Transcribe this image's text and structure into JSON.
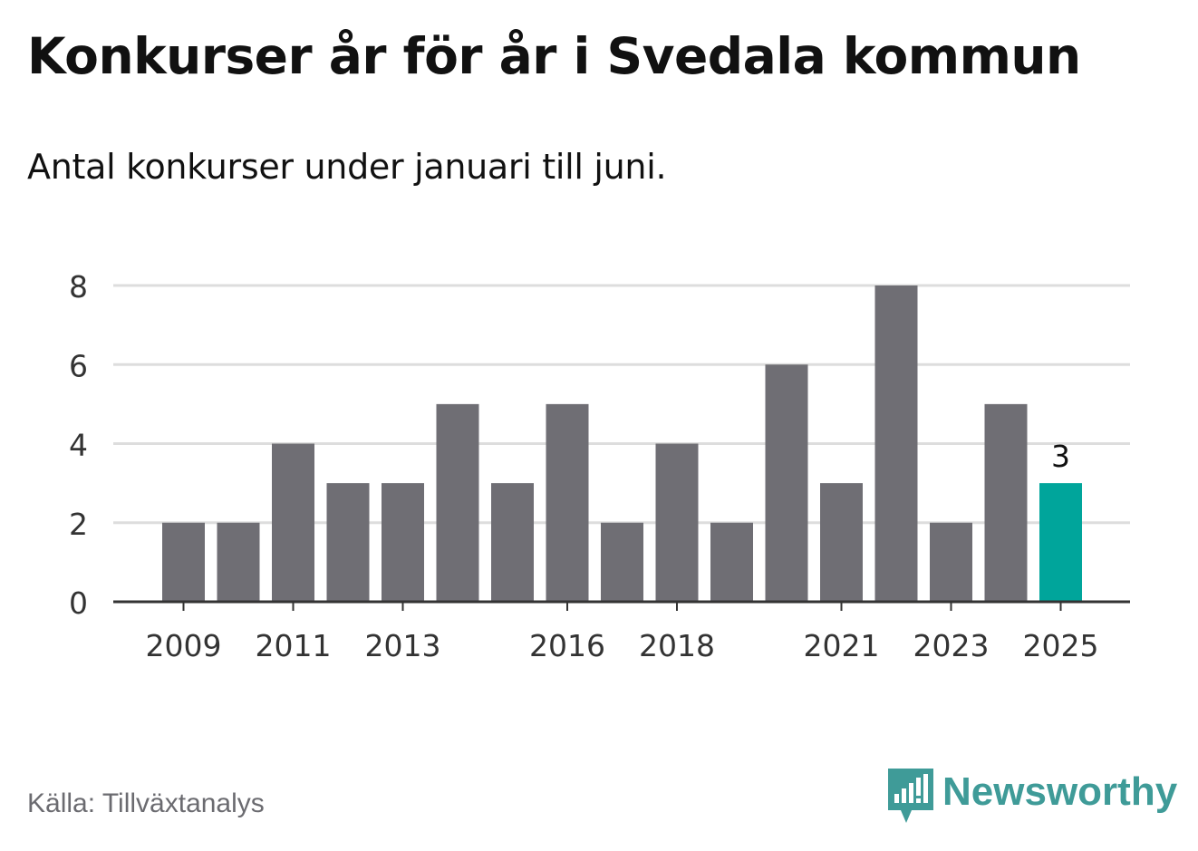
{
  "title": "Konkurser år för år i Svedala kommun",
  "subtitle": "Antal konkurser under januari till juni.",
  "source": "Källa: Tillväxtanalys",
  "brand": {
    "name": "Newsworthy",
    "icon": "newsworthy-logo-icon"
  },
  "colors": {
    "bar": "#6f6e74",
    "highlight": "#00a59b",
    "grid": "#dddddd",
    "axis": "#333333",
    "text": "#333333",
    "brand": "#3f9b98"
  },
  "chart_data": {
    "type": "bar",
    "categories": [
      "2009",
      "2010",
      "2011",
      "2012",
      "2013",
      "2014",
      "2015",
      "2016",
      "2017",
      "2018",
      "2019",
      "2020",
      "2021",
      "2022",
      "2023",
      "2024",
      "2025"
    ],
    "values": [
      2,
      2,
      4,
      3,
      3,
      5,
      3,
      5,
      2,
      4,
      2,
      6,
      3,
      8,
      2,
      5,
      3
    ],
    "xtick_labels": [
      "2009",
      "2011",
      "2013",
      "2016",
      "2018",
      "2021",
      "2023",
      "2025"
    ],
    "yticks": [
      0,
      2,
      4,
      6,
      8
    ],
    "ylim": [
      0,
      8
    ],
    "grid": true,
    "highlight": {
      "category": "2025",
      "label": "3"
    },
    "xlabel": "",
    "ylabel": ""
  }
}
